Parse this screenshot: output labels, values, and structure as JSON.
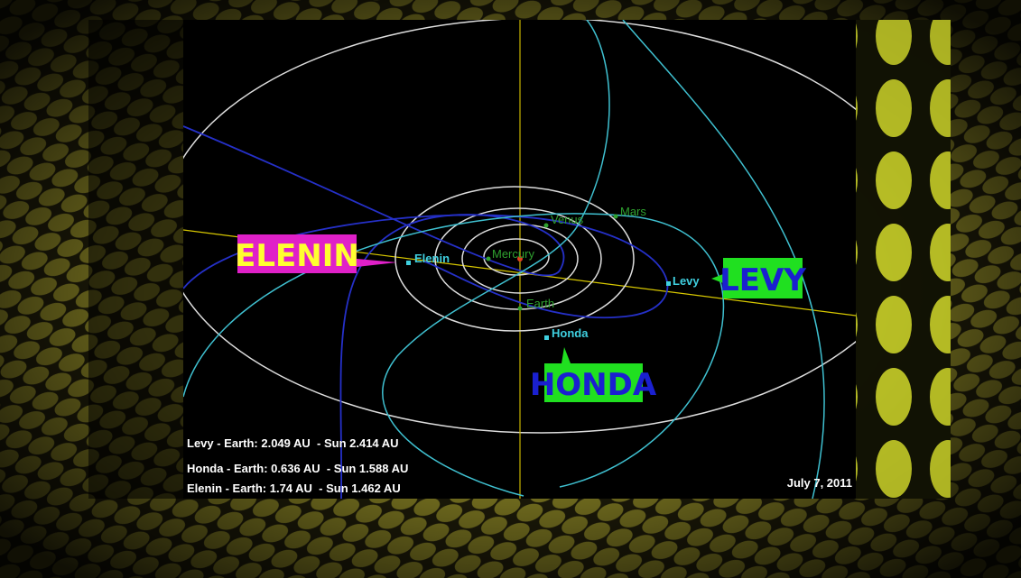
{
  "planets": [
    "Mercury",
    "Venus",
    "Earth",
    "Mars"
  ],
  "comets": [
    {
      "label": "Elenin",
      "callout": "ELENIN"
    },
    {
      "label": "Levy",
      "callout": "LEVY"
    },
    {
      "label": "Honda",
      "callout": "HONDA"
    }
  ],
  "distances": [
    "Levy - Earth: 2.049 AU  - Sun 2.414 AU",
    "Honda - Earth: 0.636 AU  - Sun 1.588 AU",
    "Elenin - Earth: 1.74 AU  - Sun 1.462 AU"
  ],
  "date": "July 7, 2011"
}
